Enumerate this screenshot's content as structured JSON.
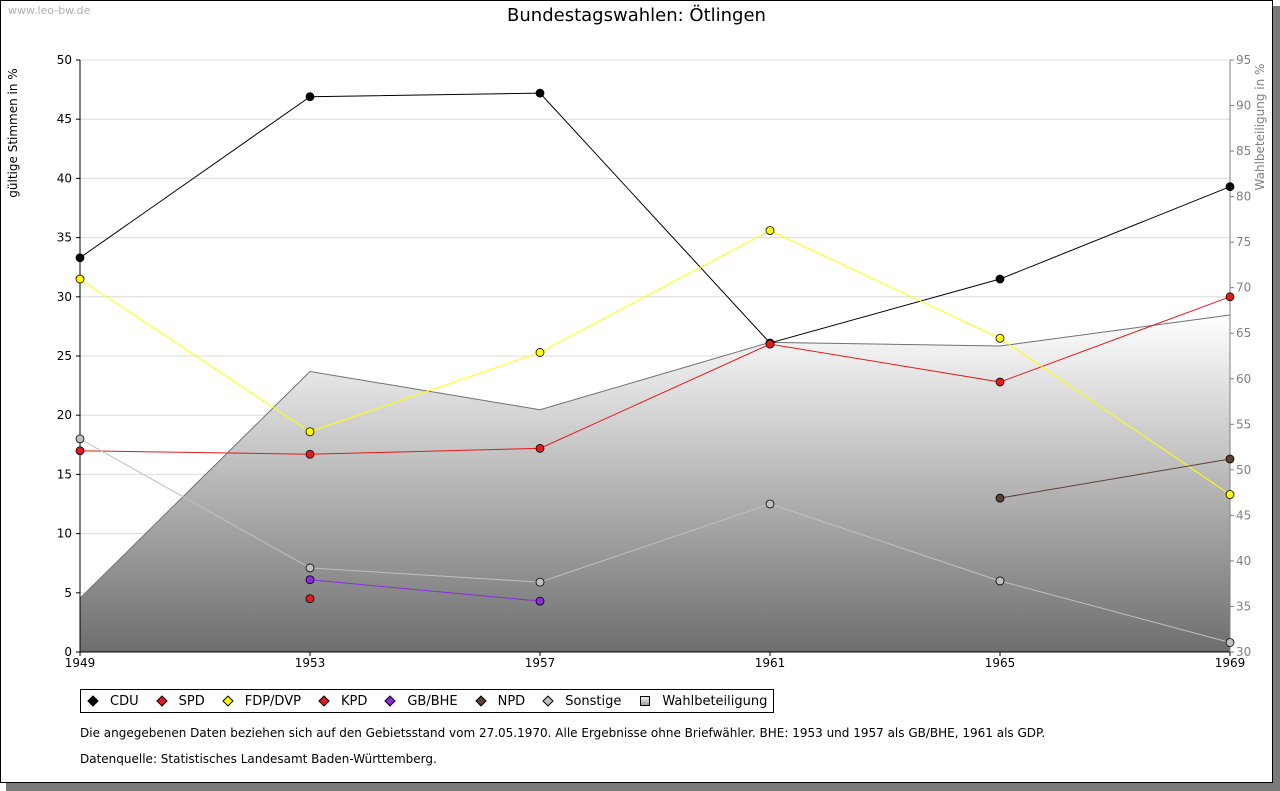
{
  "watermark": "www.leo-bw.de",
  "chart_data": {
    "type": "line",
    "title": "Bundestagswahlen: Ötlingen",
    "ylabel": "gültige Stimmen in %",
    "ylabel_right": "Wahlbeteiligung in %",
    "x": [
      "1949",
      "1953",
      "1957",
      "1961",
      "1965",
      "1969"
    ],
    "ylim": [
      0,
      50
    ],
    "yticks": [
      0,
      5,
      10,
      15,
      20,
      25,
      30,
      35,
      40,
      45,
      50
    ],
    "ylim_right": [
      30,
      95
    ],
    "yticks_right": [
      30,
      35,
      40,
      45,
      50,
      55,
      60,
      65,
      70,
      75,
      80,
      85,
      90,
      95
    ],
    "grid": true,
    "series": [
      {
        "name": "CDU",
        "color": "#000000",
        "values": [
          33.3,
          46.9,
          47.2,
          26.1,
          31.5,
          39.3
        ]
      },
      {
        "name": "SPD",
        "color": "#e41a1c",
        "values": [
          17.0,
          16.7,
          17.2,
          26.0,
          22.8,
          30.0
        ]
      },
      {
        "name": "FDP/DVP",
        "color": "#ffff00",
        "values": [
          31.5,
          18.6,
          25.3,
          35.6,
          26.5,
          13.3
        ]
      },
      {
        "name": "KPD",
        "color": "#e41a1c",
        "values": [
          null,
          4.5,
          null,
          null,
          null,
          null
        ]
      },
      {
        "name": "GB/BHE",
        "color": "#8a2be2",
        "values": [
          null,
          6.1,
          4.3,
          null,
          null,
          null
        ]
      },
      {
        "name": "NPD",
        "color": "#5c4033",
        "values": [
          null,
          null,
          null,
          null,
          13.0,
          16.3
        ]
      },
      {
        "name": "Sonstige",
        "color": "#c0c0c0",
        "values": [
          18.0,
          7.1,
          5.9,
          12.5,
          6.0,
          0.8
        ]
      }
    ],
    "area": {
      "name": "Wahlbeteiligung",
      "axis": "right",
      "values": [
        35.9,
        60.8,
        56.6,
        64.0,
        63.6,
        67.0
      ]
    }
  },
  "notes": {
    "line1": "Die angegebenen Daten beziehen sich auf den Gebietsstand vom 27.05.1970. Alle Ergebnisse ohne Briefwähler. BHE: 1953 und 1957 als GB/BHE, 1961 als GDP.",
    "line2": "Datenquelle: Statistisches Landesamt Baden-Württemberg."
  }
}
